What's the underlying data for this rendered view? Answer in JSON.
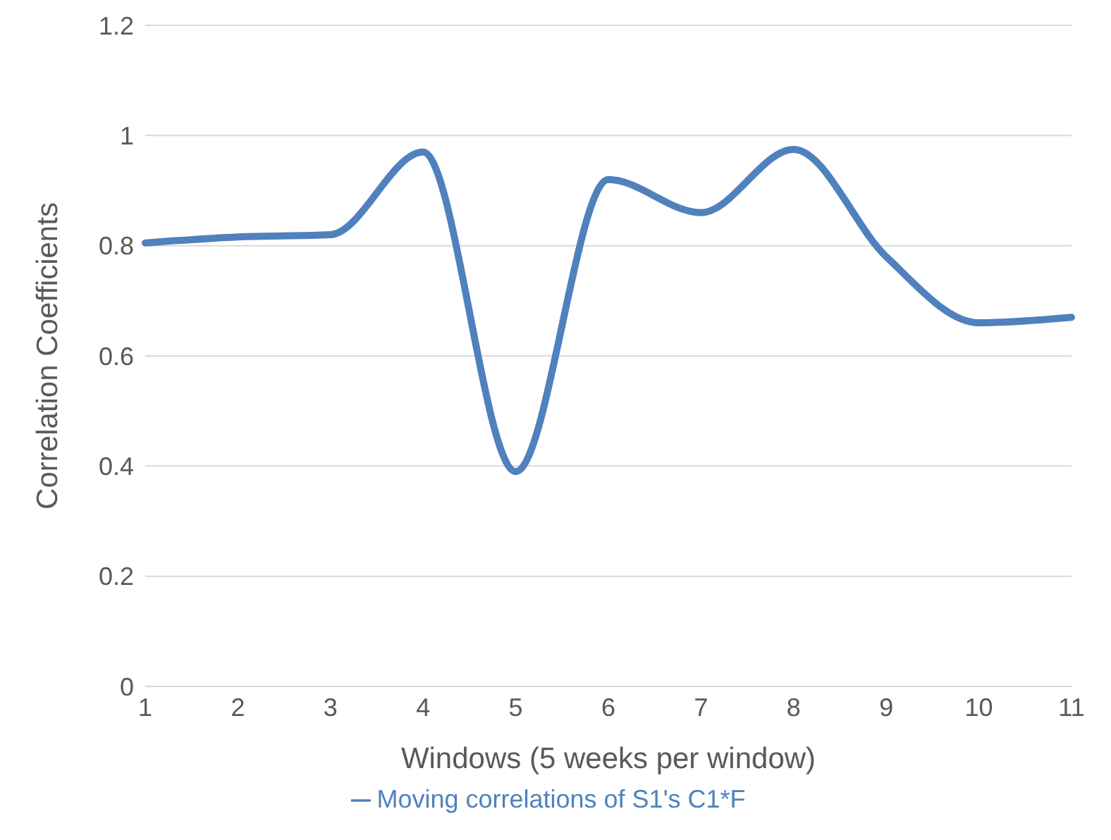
{
  "chart_data": {
    "type": "line",
    "xlabel": "Windows (5 weeks per window)",
    "ylabel": "Correlation Coefficients",
    "categories": [
      "1",
      "2",
      "3",
      "4",
      "5",
      "6",
      "7",
      "8",
      "9",
      "10",
      "11"
    ],
    "series": [
      {
        "name": "Moving correlations of S1's C1*F",
        "color": "#4f81bd",
        "values": [
          0.805,
          0.816,
          0.82,
          0.97,
          0.39,
          0.92,
          0.86,
          0.975,
          0.78,
          0.66,
          0.67
        ]
      }
    ],
    "ylim": [
      0,
      1.2
    ],
    "yticks": [
      0,
      0.2,
      0.4,
      0.6,
      0.8,
      1,
      1.2
    ],
    "grid": "y",
    "legend": "bottom",
    "marker": "none",
    "line_style": "solid"
  }
}
